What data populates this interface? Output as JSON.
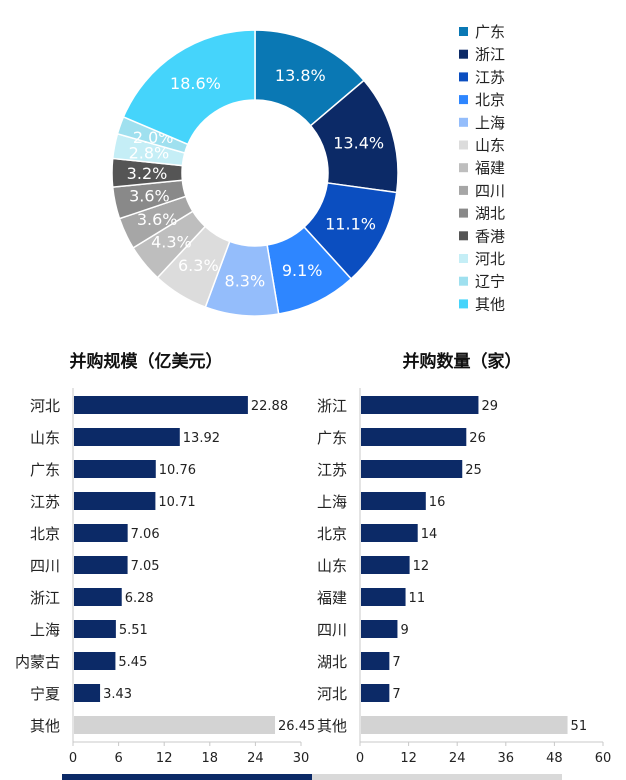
{
  "chart_data": [
    {
      "type": "pie",
      "donut": true,
      "labels": [
        "广东",
        "浙江",
        "江苏",
        "北京",
        "上海",
        "山东",
        "福建",
        "四川",
        "湖北",
        "香港",
        "河北",
        "辽宁",
        "其他"
      ],
      "values": [
        13.8,
        13.4,
        11.1,
        9.1,
        8.3,
        6.3,
        4.3,
        3.6,
        3.6,
        3.2,
        2.8,
        2.0,
        18.6
      ],
      "value_labels": [
        "13.8%",
        "13.4%",
        "11.1%",
        "9.1%",
        "8.3%",
        "6.3%",
        "4.3%",
        "3.6%",
        "3.6%",
        "3.2%",
        "2.8%",
        "2.0%",
        "18.6%"
      ],
      "colors": [
        "#0a78b4",
        "#0c2a67",
        "#0b4ec0",
        "#2e86ff",
        "#94bdfb",
        "#dcdcdc",
        "#bebebe",
        "#a6a6a6",
        "#898989",
        "#555555",
        "#c5eef6",
        "#9fe0ef",
        "#45d4fb"
      ],
      "legend_position": "right"
    },
    {
      "type": "bar",
      "orientation": "horizontal",
      "title": "并购规模（亿美元）",
      "categories": [
        "河北",
        "山东",
        "广东",
        "江苏",
        "北京",
        "四川",
        "浙江",
        "上海",
        "内蒙古",
        "宁夏",
        "其他"
      ],
      "values": [
        22.88,
        13.92,
        10.76,
        10.71,
        7.06,
        7.05,
        6.28,
        5.51,
        5.45,
        3.43,
        26.45
      ],
      "value_labels": [
        "22.88",
        "13.92",
        "10.76",
        "10.71",
        "7.06",
        "7.05",
        "6.28",
        "5.51",
        "5.45",
        "3.43",
        "26.45"
      ],
      "xlim": [
        0,
        30
      ],
      "xticks": [
        "0",
        "6",
        "12",
        "18",
        "24",
        "30"
      ],
      "bar_color": "#0c2a67",
      "other_color": "#d3d3d3"
    },
    {
      "type": "bar",
      "orientation": "horizontal",
      "title": "并购数量（家）",
      "categories": [
        "浙江",
        "广东",
        "江苏",
        "上海",
        "北京",
        "山东",
        "福建",
        "四川",
        "湖北",
        "河北",
        "其他"
      ],
      "values": [
        29,
        26,
        25,
        16,
        14,
        12,
        11,
        9,
        7,
        7,
        51
      ],
      "value_labels": [
        "29",
        "26",
        "25",
        "16",
        "14",
        "12",
        "11",
        "9",
        "7",
        "7",
        "51"
      ],
      "xlim": [
        0,
        60
      ],
      "xticks": [
        "0",
        "12",
        "24",
        "36",
        "48",
        "60"
      ],
      "bar_color": "#0c2a67",
      "other_color": "#d3d3d3"
    }
  ],
  "colors": {
    "bottom_bar_dark": "#0c2a67",
    "bottom_bar_light": "#d9d9d9"
  }
}
